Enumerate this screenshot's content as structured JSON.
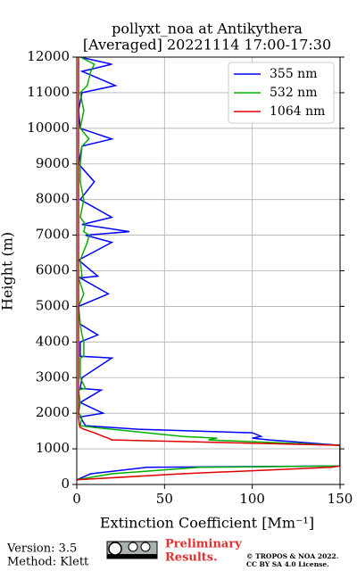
{
  "chart_data": {
    "type": "line",
    "title": "pollyxt_noa at Antikythera",
    "subtitle": "[Averaged] 20221114 17:00-17:30",
    "xlabel": "Extinction Coefficient [Mm⁻¹]",
    "ylabel": "Height (m)",
    "y": [
      130,
      300,
      480,
      520,
      530,
      700,
      780,
      900,
      1100,
      1250,
      1300,
      1350,
      1450,
      1550,
      1600,
      1650,
      1900,
      2000,
      2300,
      2650,
      2700,
      3000,
      3550,
      3600,
      4000,
      4200,
      4500,
      5000,
      5350,
      5800,
      5850,
      6300,
      6800,
      7000,
      7100,
      7300,
      7500,
      8000,
      8500,
      9000,
      9500,
      9700,
      10000,
      10500,
      11000,
      11200,
      11600,
      11800,
      12000
    ],
    "series": [
      {
        "name": "355 nm",
        "color": "#0000ff",
        "values": [
          0,
          8,
          40,
          150,
          150,
          150,
          150,
          150,
          150,
          110,
          100,
          105,
          100,
          35,
          20,
          5,
          2,
          15,
          2,
          14,
          2,
          3,
          20,
          2,
          2,
          12,
          2,
          1,
          18,
          2,
          12,
          1,
          20,
          5,
          30,
          3,
          20,
          2,
          10,
          1,
          3,
          20,
          2,
          1,
          3,
          22,
          3,
          20,
          2
        ]
      },
      {
        "name": "532 nm",
        "color": "#00b000",
        "values": [
          0,
          20,
          70,
          150,
          150,
          150,
          150,
          150,
          150,
          75,
          80,
          60,
          40,
          20,
          10,
          2,
          3,
          1,
          2,
          1,
          5,
          2,
          2,
          4,
          4,
          3,
          2,
          1,
          4,
          1,
          3,
          2,
          6,
          7,
          4,
          5,
          2,
          4,
          2,
          2,
          3,
          7,
          2,
          4,
          2,
          6,
          8,
          10,
          2
        ]
      },
      {
        "name": "1064 nm",
        "color": "#e00000",
        "values": [
          0,
          60,
          145,
          150,
          150,
          150,
          150,
          150,
          150,
          20,
          18,
          15,
          10,
          4,
          2,
          1.5,
          1,
          1,
          1,
          1,
          1,
          1,
          1,
          1,
          1,
          1,
          1,
          1,
          1,
          1,
          1,
          1,
          1,
          1,
          1,
          1,
          1,
          1,
          1,
          1,
          1,
          1,
          1,
          1,
          1,
          1,
          1,
          1,
          1
        ]
      }
    ],
    "xlim": [
      0,
      150
    ],
    "xticks": [
      0,
      50,
      100,
      150
    ],
    "ylim": [
      0,
      12000
    ],
    "yticks": [
      0,
      1000,
      2000,
      3000,
      4000,
      5000,
      6000,
      7000,
      8000,
      9000,
      10000,
      11000,
      12000
    ],
    "grid": true,
    "legend": "upper right"
  },
  "footer": {
    "version": "Version: 3.5",
    "method": "Method: Klett",
    "preliminary": "Preliminary",
    "results": "Results.",
    "copyright": "© TROPOS & NOA 2022.",
    "license": "CC BY SA 4.0 License."
  }
}
